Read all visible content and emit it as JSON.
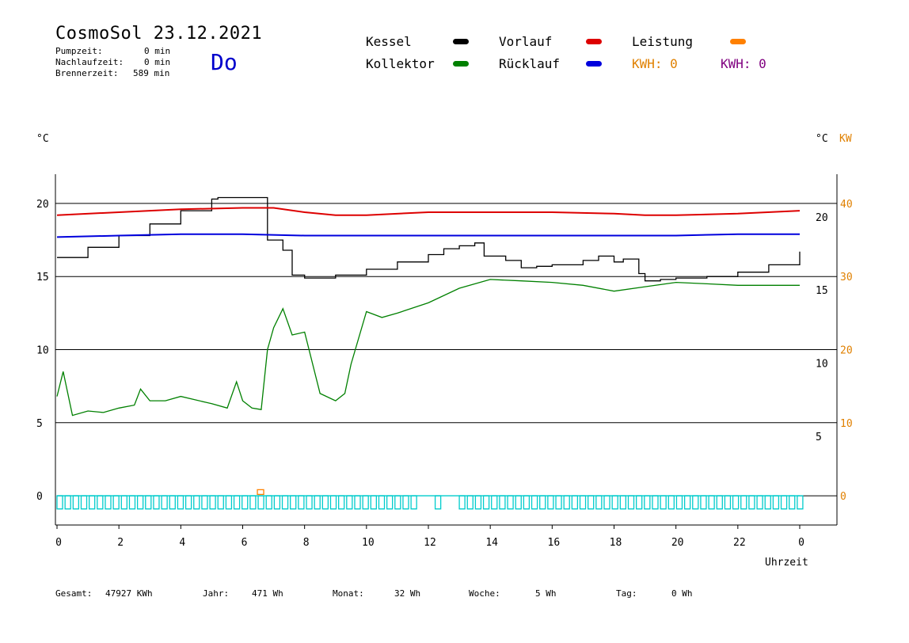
{
  "header": {
    "title": "CosmoSol 23.12.2021",
    "day": "Do",
    "stats": [
      {
        "label": "Pumpzeit:",
        "value": "0 min"
      },
      {
        "label": "Nachlaufzeit:",
        "value": "0 min"
      },
      {
        "label": "Brennerzeit:",
        "value": "589 min"
      }
    ]
  },
  "legend": {
    "items": [
      {
        "label": "Kessel",
        "color": "#000000"
      },
      {
        "label": "Vorlauf",
        "color": "#dd0000"
      },
      {
        "label": "Leistung",
        "color": "#ff8000"
      },
      {
        "label": "Kollektor",
        "color": "#008000"
      },
      {
        "label": "Rücklauf",
        "color": "#0000dd"
      }
    ],
    "kwh1": "KWH: 0",
    "kwh1_color": "#e08000",
    "kwh2": "KWH: 0",
    "kwh2_color": "#800080"
  },
  "axes": {
    "left_unit": "°C",
    "right_unit": "°C",
    "right_unit2": "KW",
    "xlabel": "Uhrzeit"
  },
  "footer": {
    "gesamt_label": "Gesamt:",
    "gesamt_value": "47927 KWh",
    "jahr_label": "Jahr:",
    "jahr_value": "471 Wh",
    "monat_label": "Monat:",
    "monat_value": "32 Wh",
    "woche_label": "Woche:",
    "woche_value": "5 Wh",
    "tag_label": "Tag:",
    "tag_value": "0 Wh"
  },
  "chart_data": {
    "type": "line",
    "x_ticks": [
      "0",
      "2",
      "4",
      "6",
      "8",
      "10",
      "12",
      "14",
      "16",
      "18",
      "20",
      "22",
      "0"
    ],
    "x_range": [
      0,
      24
    ],
    "y_left_ticks": [
      "0",
      "5",
      "10",
      "15",
      "20"
    ],
    "y_right_ticks": [
      "5",
      "10",
      "15",
      "20"
    ],
    "y_right2_ticks": [
      "0",
      "10",
      "20",
      "30",
      "40"
    ],
    "ylim": [
      -2,
      22
    ],
    "grid_y": [
      5,
      10,
      15,
      20
    ],
    "series": [
      {
        "name": "Kessel",
        "color": "#000000",
        "x": [
          0,
          1,
          2,
          3,
          4,
          5,
          5.2,
          6.6,
          6.8,
          7.3,
          7.6,
          8,
          9,
          10,
          11,
          12,
          12.5,
          13,
          13.5,
          13.8,
          14.5,
          15,
          15.5,
          16,
          17,
          17.5,
          18,
          18.3,
          18.8,
          19,
          19.5,
          20,
          21,
          22,
          23,
          24
        ],
        "y": [
          16.3,
          17.0,
          17.8,
          18.6,
          19.5,
          20.3,
          20.4,
          20.4,
          17.5,
          16.8,
          15.1,
          14.9,
          15.1,
          15.5,
          16.0,
          16.5,
          16.9,
          17.1,
          17.3,
          16.4,
          16.1,
          15.6,
          15.7,
          15.8,
          16.1,
          16.4,
          16.0,
          16.2,
          15.2,
          14.7,
          14.8,
          14.9,
          15.0,
          15.3,
          15.8,
          16.7
        ]
      },
      {
        "name": "Vorlauf",
        "color": "#dd0000",
        "x": [
          0,
          2,
          4,
          6,
          7,
          8,
          9,
          10,
          12,
          14,
          16,
          18,
          19,
          20,
          22,
          24
        ],
        "y": [
          19.2,
          19.4,
          19.6,
          19.7,
          19.7,
          19.4,
          19.2,
          19.2,
          19.4,
          19.4,
          19.4,
          19.3,
          19.2,
          19.2,
          19.3,
          19.5
        ]
      },
      {
        "name": "Rücklauf",
        "color": "#0000dd",
        "x": [
          0,
          2,
          4,
          6,
          8,
          10,
          12,
          14,
          16,
          18,
          20,
          22,
          24
        ],
        "y": [
          17.7,
          17.8,
          17.9,
          17.9,
          17.8,
          17.8,
          17.8,
          17.8,
          17.8,
          17.8,
          17.8,
          17.9,
          17.9
        ]
      },
      {
        "name": "Kollektor",
        "color": "#008000",
        "x": [
          0,
          0.2,
          0.5,
          1,
          1.5,
          2,
          2.5,
          2.7,
          3,
          3.5,
          4,
          5,
          5.5,
          5.8,
          6,
          6.3,
          6.6,
          6.8,
          7,
          7.3,
          7.6,
          8,
          8.5,
          9,
          9.3,
          9.5,
          10,
          10.5,
          11,
          12,
          13,
          14,
          15,
          16,
          17,
          18,
          19,
          20,
          21,
          22,
          23,
          24
        ],
        "y": [
          6.8,
          8.5,
          5.5,
          5.8,
          5.7,
          6.0,
          6.2,
          7.3,
          6.5,
          6.5,
          6.8,
          6.3,
          6.0,
          7.8,
          6.5,
          6.0,
          5.9,
          10.0,
          11.5,
          12.8,
          11.0,
          11.2,
          7.0,
          6.5,
          7.0,
          9.0,
          12.6,
          12.2,
          12.5,
          13.2,
          14.2,
          14.8,
          14.7,
          14.6,
          14.4,
          14.0,
          14.3,
          14.6,
          14.5,
          14.4,
          14.4,
          14.4
        ]
      },
      {
        "name": "Leistung",
        "color": "#ff8000",
        "x": [
          6.5,
          6.7
        ],
        "y": [
          0.2,
          0.2
        ]
      }
    ],
    "pump_signal": {
      "color": "#00cccc",
      "x_range": [
        0,
        24
      ]
    }
  }
}
